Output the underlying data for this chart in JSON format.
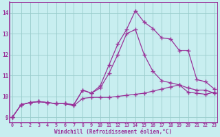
{
  "xlabel": "Windchill (Refroidissement éolien,°C)",
  "bg_color": "#c8eef0",
  "line_color": "#993399",
  "grid_color": "#99cccc",
  "ylim": [
    8.75,
    14.5
  ],
  "xlim": [
    -0.3,
    23.3
  ],
  "xticks": [
    0,
    1,
    2,
    3,
    4,
    5,
    6,
    7,
    8,
    9,
    10,
    11,
    12,
    13,
    14,
    15,
    16,
    17,
    18,
    19,
    20,
    21,
    22,
    23
  ],
  "yticks": [
    9,
    10,
    11,
    12,
    13,
    14
  ],
  "line_top": [
    9.0,
    9.6,
    9.7,
    9.75,
    9.7,
    9.65,
    9.65,
    9.6,
    10.3,
    10.15,
    10.5,
    11.5,
    12.5,
    13.2,
    14.1,
    13.55,
    13.25,
    12.8,
    12.75,
    12.2,
    12.2,
    10.8,
    10.7,
    10.35
  ],
  "line_mid": [
    9.0,
    9.6,
    9.7,
    9.75,
    9.7,
    9.65,
    9.65,
    9.6,
    10.3,
    10.15,
    10.4,
    11.1,
    12.0,
    13.0,
    13.2,
    12.0,
    11.2,
    10.75,
    10.65,
    10.55,
    10.4,
    10.3,
    10.3,
    10.15
  ],
  "line_bot": [
    9.0,
    9.6,
    9.7,
    9.75,
    9.7,
    9.65,
    9.65,
    9.55,
    9.9,
    9.95,
    9.95,
    9.95,
    10.0,
    10.05,
    10.1,
    10.15,
    10.25,
    10.35,
    10.45,
    10.55,
    10.2,
    10.15,
    10.1,
    10.2
  ]
}
